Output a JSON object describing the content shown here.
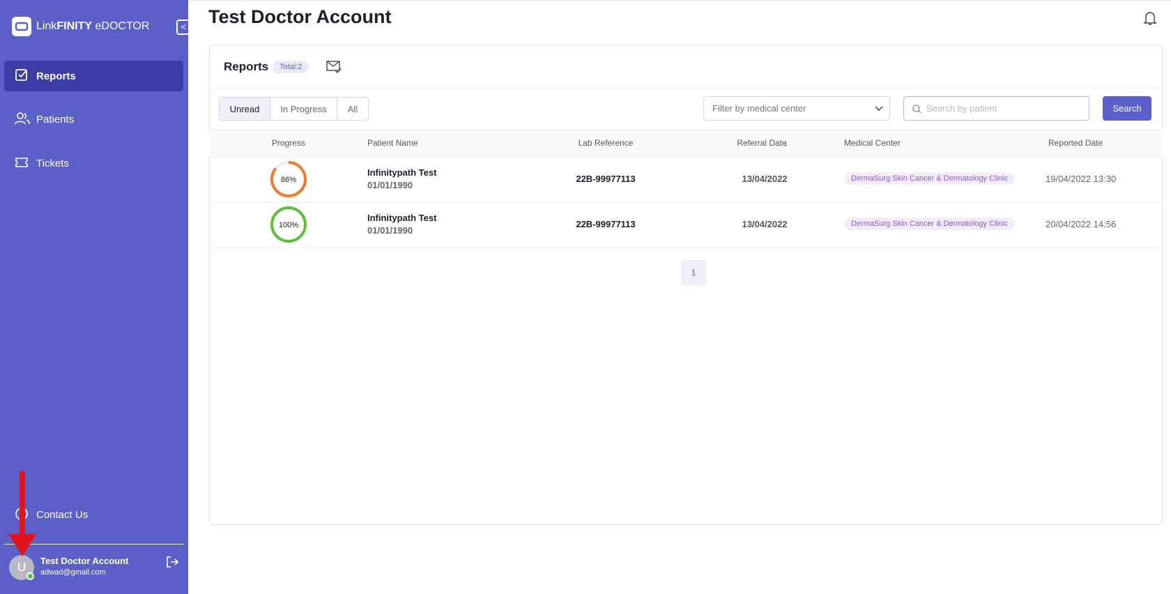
{
  "sidebar": {
    "brand": [
      "Link",
      "FINITY",
      "eDOCTOR"
    ],
    "nav": [
      "Reports",
      "Patients",
      "Tickets"
    ],
    "contact": "Contact Us",
    "user": {
      "avatar": "U",
      "name": "Test Doctor Account",
      "email": "adwad@gmail.com"
    }
  },
  "header": {
    "title": "Test Doctor Account"
  },
  "reports": {
    "title": "Reports",
    "total": "Total:2",
    "tabs": [
      "Unread",
      "In Progress",
      "All"
    ],
    "filter_placeholder": "Filter by medical center",
    "search_placeholder": "Search by patient",
    "search_button": "Search"
  },
  "table": {
    "columns": [
      "Progress",
      "Patient Name",
      "Lab Reference",
      "Referral Date",
      "Medical Center",
      "Reported Date"
    ],
    "rows": [
      {
        "progress": 86,
        "progress_label": "86%",
        "patient": "Infinitypath Test",
        "dob": "01/01/1990",
        "lab_ref": "22B-99977113",
        "referral_date": "13/04/2022",
        "medical_center": "DermaSurg Skin Cancer & Dermatology Clinic",
        "reported_date": "19/04/2022 13:30"
      },
      {
        "progress": 100,
        "progress_label": "100%",
        "patient": "Infinitypath Test",
        "dob": "01/01/1990",
        "lab_ref": "22B-99977113",
        "referral_date": "13/04/2022",
        "medical_center": "DermaSurg Skin Cancer & Dermatology Clinic",
        "reported_date": "20/04/2022 14:56"
      }
    ]
  },
  "pagination": {
    "pages": [
      "1"
    ]
  }
}
